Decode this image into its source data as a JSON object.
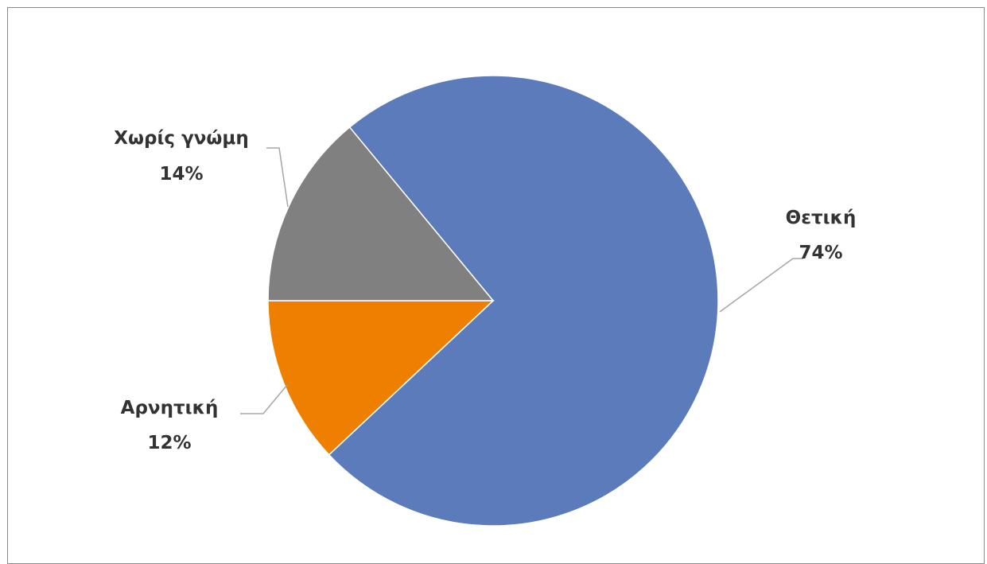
{
  "chart_data": {
    "type": "pie",
    "title": "",
    "slices": [
      {
        "label": "Θετική",
        "value": 74,
        "value_label": "74%",
        "color": "#5b7bbb"
      },
      {
        "label": "Αρνητική",
        "value": 12,
        "value_label": "12%",
        "color": "#ee7f01"
      },
      {
        "label": "Χωρίς γνώμη",
        "value": 14,
        "value_label": "14%",
        "color": "#808080"
      }
    ],
    "legend": "none",
    "data_labels": "outside-with-leader-lines"
  }
}
